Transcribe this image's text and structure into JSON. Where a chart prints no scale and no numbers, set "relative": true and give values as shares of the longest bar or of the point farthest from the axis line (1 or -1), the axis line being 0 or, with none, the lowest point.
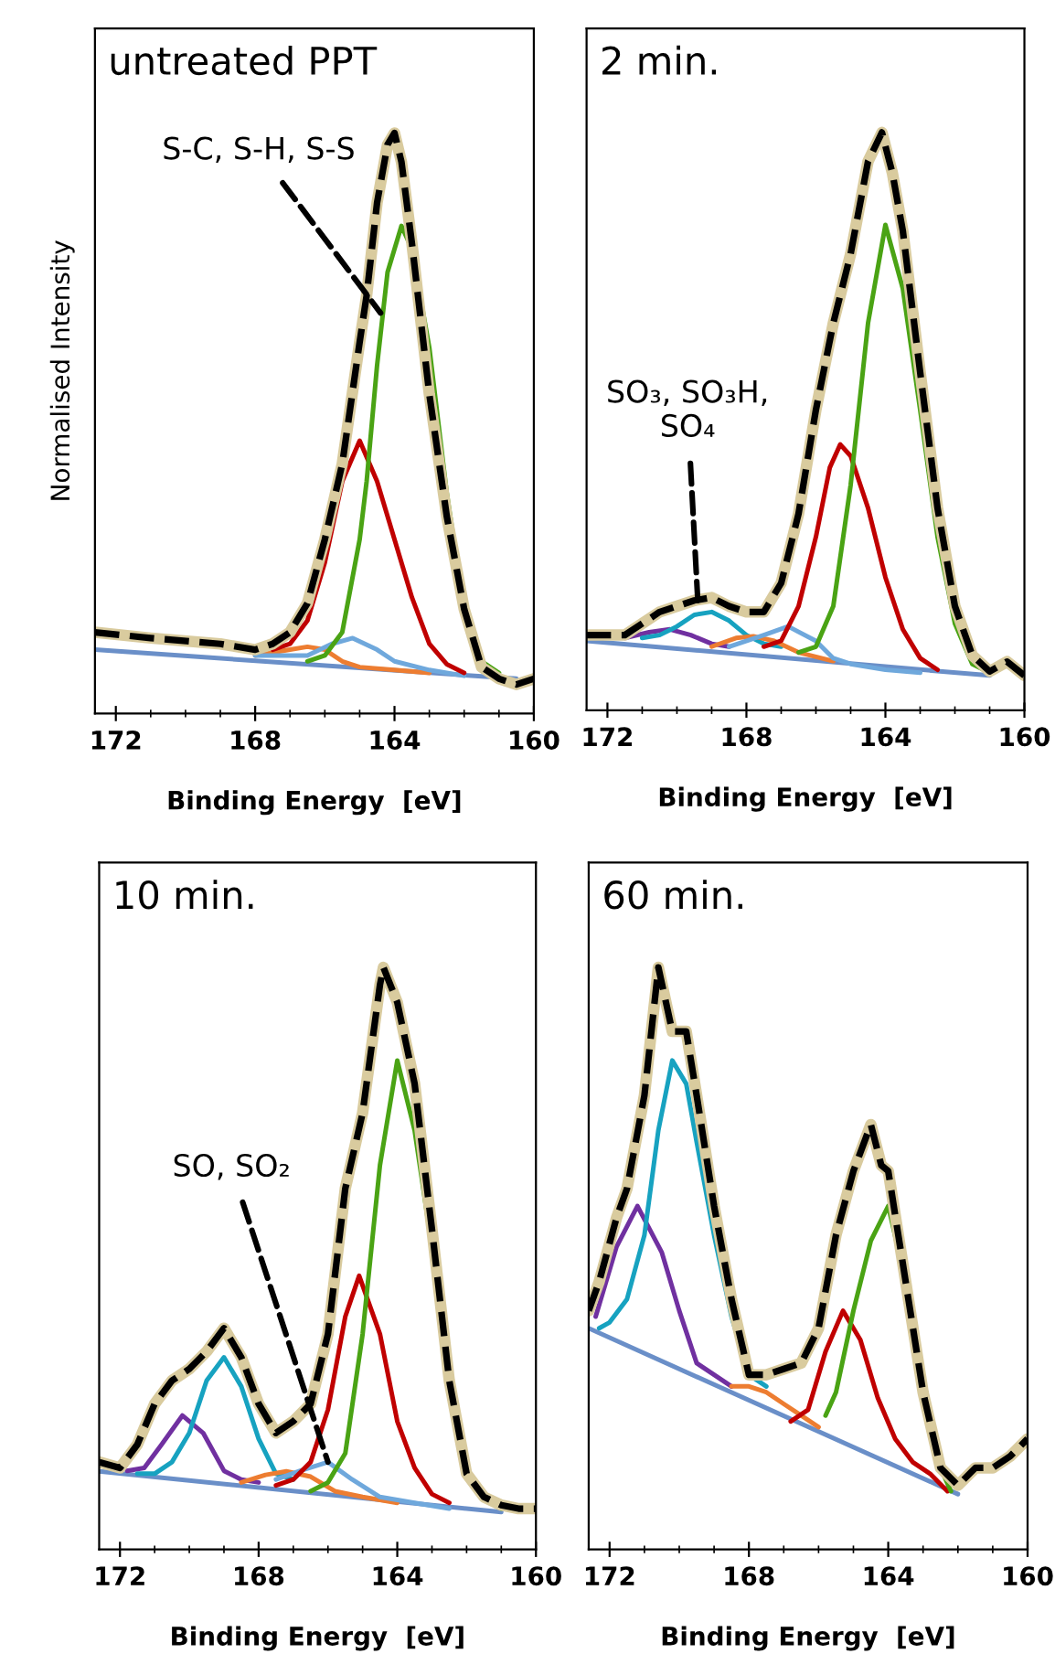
{
  "chart_data": [
    {
      "type": "line",
      "title": "untreated PPT",
      "ylabel": "Normalised Intensity",
      "xlabel": "Binding Energy  [eV]",
      "relative": true,
      "tick_labels": "x",
      "xlim": [
        172.6,
        160
      ],
      "xticks": [
        172,
        168,
        164,
        160
      ],
      "annotations": [
        {
          "text": "S-C, S-H, S-S",
          "x": 164.4,
          "y": 0.69
        }
      ],
      "series": [
        {
          "color": "#6a8fc8",
          "x": [
            172.6,
            160.5
          ],
          "values": [
            0.11,
            0.06
          ]
        },
        {
          "color": "#ed7d31",
          "x": [
            168,
            167,
            166.5,
            166,
            165.5,
            165,
            164,
            163
          ],
          "values": [
            0.1,
            0.11,
            0.115,
            0.11,
            0.09,
            0.08,
            0.075,
            0.07
          ]
        },
        {
          "color": "#6fa8dc",
          "x": [
            168,
            166.5,
            165.8,
            165.2,
            164.5,
            164,
            163,
            162
          ],
          "values": [
            0.1,
            0.1,
            0.12,
            0.13,
            0.11,
            0.09,
            0.075,
            0.065
          ]
        },
        {
          "color": "#c00000",
          "x": [
            167.5,
            167,
            166.5,
            166,
            165.5,
            165,
            164.5,
            164,
            163.5,
            163,
            162.5,
            162
          ],
          "values": [
            0.11,
            0.12,
            0.16,
            0.26,
            0.4,
            0.47,
            0.4,
            0.3,
            0.2,
            0.12,
            0.085,
            0.07
          ]
        },
        {
          "color": "#4aa314",
          "x": [
            166.5,
            166,
            165.5,
            165,
            164.8,
            164.5,
            164.2,
            163.8,
            163.5,
            163,
            162.5,
            162,
            161.5,
            161
          ],
          "values": [
            0.09,
            0.1,
            0.14,
            0.3,
            0.4,
            0.6,
            0.76,
            0.84,
            0.8,
            0.63,
            0.38,
            0.18,
            0.09,
            0.07
          ]
        },
        {
          "color": "#d9cb9e",
          "x": [
            172.6,
            171,
            169,
            168,
            167.5,
            167,
            166.5,
            166,
            165.5,
            165,
            164.8,
            164.5,
            164.2,
            164,
            163.8,
            163.5,
            163,
            162.5,
            162,
            161.5,
            161,
            160.5,
            160
          ],
          "values": [
            0.14,
            0.13,
            0.12,
            0.11,
            0.12,
            0.14,
            0.19,
            0.3,
            0.43,
            0.64,
            0.72,
            0.88,
            0.98,
            1.0,
            0.95,
            0.81,
            0.55,
            0.34,
            0.18,
            0.08,
            0.06,
            0.05,
            0.06
          ]
        },
        {
          "color": "#000000",
          "line_style": "dashed",
          "x": [
            172.6,
            171,
            169,
            168,
            167.5,
            167,
            166.5,
            166,
            165.5,
            165,
            164.8,
            164.5,
            164.2,
            164,
            163.8,
            163.5,
            163,
            162.5,
            162,
            161.5,
            161,
            160.5,
            160
          ],
          "values": [
            0.14,
            0.13,
            0.12,
            0.11,
            0.12,
            0.14,
            0.19,
            0.3,
            0.43,
            0.64,
            0.72,
            0.88,
            0.98,
            1.0,
            0.95,
            0.81,
            0.55,
            0.34,
            0.18,
            0.08,
            0.06,
            0.05,
            0.06
          ]
        }
      ]
    },
    {
      "type": "line",
      "title": "2 min.",
      "xlabel": "Binding Energy  [eV]",
      "relative": true,
      "tick_labels": "x",
      "xlim": [
        172.6,
        160
      ],
      "xticks": [
        172,
        168,
        164,
        160
      ],
      "annotations": [
        {
          "text": "SO₃, SO₃H,\nSO₄",
          "x": 169.4,
          "y": 0.19
        }
      ],
      "series": [
        {
          "color": "#6a8fc8",
          "x": [
            172.6,
            161
          ],
          "values": [
            0.12,
            0.06
          ]
        },
        {
          "color": "#7030a0",
          "x": [
            171.5,
            170.8,
            170.2,
            169.6,
            169,
            168.5
          ],
          "values": [
            0.125,
            0.135,
            0.14,
            0.13,
            0.115,
            0.11
          ]
        },
        {
          "color": "#17a2c0",
          "x": [
            171,
            170.5,
            170,
            169.5,
            169,
            168.5,
            168,
            167.5,
            167
          ],
          "values": [
            0.125,
            0.13,
            0.145,
            0.165,
            0.17,
            0.155,
            0.13,
            0.115,
            0.11
          ]
        },
        {
          "color": "#ed7d31",
          "x": [
            169,
            168.3,
            167.8,
            167.2,
            166.5,
            165.5
          ],
          "values": [
            0.11,
            0.125,
            0.128,
            0.12,
            0.1,
            0.085
          ]
        },
        {
          "color": "#6fa8dc",
          "x": [
            168.5,
            167.5,
            166.8,
            166,
            165.5,
            165,
            164,
            163
          ],
          "values": [
            0.11,
            0.13,
            0.145,
            0.12,
            0.09,
            0.08,
            0.07,
            0.065
          ]
        },
        {
          "color": "#c00000",
          "x": [
            167.5,
            167,
            166.5,
            166,
            165.6,
            165.3,
            165,
            164.5,
            164,
            163.5,
            163,
            162.5
          ],
          "values": [
            0.11,
            0.12,
            0.18,
            0.3,
            0.42,
            0.46,
            0.44,
            0.35,
            0.23,
            0.14,
            0.09,
            0.07
          ]
        },
        {
          "color": "#4aa314",
          "x": [
            166.5,
            166,
            165.5,
            165,
            164.5,
            164,
            163.5,
            163,
            162.5,
            162,
            161.5,
            161
          ],
          "values": [
            0.1,
            0.11,
            0.18,
            0.39,
            0.67,
            0.84,
            0.73,
            0.52,
            0.3,
            0.15,
            0.08,
            0.065
          ]
        },
        {
          "color": "#d9cb9e",
          "x": [
            172.6,
            171.5,
            171,
            170.5,
            170,
            169.5,
            169,
            168.5,
            168,
            167.5,
            167,
            166.5,
            166,
            165.5,
            165,
            164.5,
            164.1,
            163.8,
            163.5,
            163,
            162.5,
            162,
            161.5,
            161,
            160.5,
            160
          ],
          "values": [
            0.13,
            0.13,
            0.15,
            0.17,
            0.18,
            0.19,
            0.195,
            0.18,
            0.17,
            0.17,
            0.22,
            0.34,
            0.52,
            0.67,
            0.79,
            0.95,
            1.0,
            0.93,
            0.83,
            0.585,
            0.35,
            0.18,
            0.095,
            0.067,
            0.084,
            0.06
          ]
        },
        {
          "color": "#000000",
          "line_style": "dashed",
          "x": [
            172.6,
            171.5,
            171,
            170.5,
            170,
            169.5,
            169,
            168.5,
            168,
            167.5,
            167,
            166.5,
            166,
            165.5,
            165,
            164.5,
            164.1,
            163.8,
            163.5,
            163,
            162.5,
            162,
            161.5,
            161,
            160.5,
            160
          ],
          "values": [
            0.13,
            0.13,
            0.15,
            0.17,
            0.18,
            0.19,
            0.195,
            0.18,
            0.17,
            0.17,
            0.22,
            0.34,
            0.52,
            0.67,
            0.79,
            0.95,
            1.0,
            0.93,
            0.83,
            0.585,
            0.35,
            0.18,
            0.095,
            0.067,
            0.084,
            0.06
          ]
        }
      ]
    },
    {
      "type": "line",
      "title": "10 min.",
      "xlabel": "Binding Energy  [eV]",
      "relative": true,
      "tick_labels": "x",
      "xlim": [
        172.6,
        160
      ],
      "xticks": [
        172,
        168,
        164,
        160
      ],
      "annotations": [
        {
          "text": "SO, SO₂",
          "x": 166.0,
          "y": 0.15
        }
      ],
      "series": [
        {
          "color": "#6a8fc8",
          "x": [
            172.6,
            161
          ],
          "values": [
            0.134,
            0.064
          ]
        },
        {
          "color": "#7030a0",
          "x": [
            171.8,
            171.3,
            170.8,
            170.2,
            169.6,
            169,
            168.5,
            168
          ],
          "values": [
            0.135,
            0.14,
            0.18,
            0.23,
            0.2,
            0.135,
            0.12,
            0.115
          ]
        },
        {
          "color": "#17a2c0",
          "x": [
            171.5,
            171,
            170.5,
            170,
            169.5,
            169,
            168.5,
            168,
            167.5,
            167
          ],
          "values": [
            0.13,
            0.13,
            0.15,
            0.2,
            0.29,
            0.33,
            0.28,
            0.19,
            0.13,
            0.12
          ]
        },
        {
          "color": "#ed7d31",
          "x": [
            168.5,
            167.8,
            167.2,
            166.5,
            165.8,
            165,
            164
          ],
          "values": [
            0.115,
            0.128,
            0.134,
            0.125,
            0.1,
            0.09,
            0.08
          ]
        },
        {
          "color": "#6fa8dc",
          "x": [
            167.5,
            166.8,
            166,
            165.3,
            164.5,
            163.5,
            162.5
          ],
          "values": [
            0.12,
            0.135,
            0.15,
            0.12,
            0.09,
            0.08,
            0.07
          ]
        },
        {
          "color": "#c00000",
          "x": [
            167.5,
            167,
            166.5,
            166,
            165.5,
            165.1,
            164.5,
            164,
            163.5,
            163,
            162.5
          ],
          "values": [
            0.11,
            0.12,
            0.15,
            0.24,
            0.4,
            0.47,
            0.37,
            0.22,
            0.14,
            0.095,
            0.08
          ]
        },
        {
          "color": "#4aa314",
          "x": [
            166.5,
            166,
            165.5,
            165,
            164.5,
            164,
            163.5,
            163,
            162.5,
            162,
            161.5,
            161
          ],
          "values": [
            0.1,
            0.115,
            0.165,
            0.37,
            0.66,
            0.84,
            0.72,
            0.52,
            0.28,
            0.13,
            0.085,
            0.07
          ]
        },
        {
          "color": "#d9cb9e",
          "x": [
            172.6,
            172,
            171.5,
            171,
            170.5,
            170,
            169.5,
            169,
            168.5,
            168,
            167.5,
            167,
            166.5,
            166,
            165.5,
            165,
            164.5,
            164.4,
            164,
            163.5,
            163,
            162.5,
            162,
            161.5,
            161,
            160.5,
            160
          ],
          "values": [
            0.15,
            0.14,
            0.18,
            0.25,
            0.29,
            0.31,
            0.34,
            0.38,
            0.33,
            0.25,
            0.2,
            0.22,
            0.25,
            0.37,
            0.62,
            0.75,
            0.97,
            1.0,
            0.94,
            0.8,
            0.55,
            0.29,
            0.13,
            0.09,
            0.076,
            0.07,
            0.07
          ]
        },
        {
          "color": "#000000",
          "line_style": "dashed",
          "x": [
            172.6,
            172,
            171.5,
            171,
            170.5,
            170,
            169.5,
            169,
            168.5,
            168,
            167.5,
            167,
            166.5,
            166,
            165.5,
            165,
            164.5,
            164.4,
            164,
            163.5,
            163,
            162.5,
            162,
            161.5,
            161,
            160.5,
            160
          ],
          "values": [
            0.15,
            0.14,
            0.18,
            0.25,
            0.29,
            0.31,
            0.34,
            0.38,
            0.33,
            0.25,
            0.2,
            0.22,
            0.25,
            0.37,
            0.62,
            0.75,
            0.97,
            1.0,
            0.94,
            0.8,
            0.55,
            0.29,
            0.13,
            0.09,
            0.076,
            0.07,
            0.07
          ]
        }
      ]
    },
    {
      "type": "line",
      "title": "60 min.",
      "xlabel": "Binding Energy  [eV]",
      "relative": true,
      "tick_labels": "x",
      "xlim": [
        172.6,
        160
      ],
      "xticks": [
        172,
        168,
        164,
        160
      ],
      "series": [
        {
          "color": "#6a8fc8",
          "x": [
            172.6,
            162
          ],
          "values": [
            0.38,
            0.095
          ]
        },
        {
          "color": "#7030a0",
          "x": [
            172.4,
            171.8,
            171.2,
            170.5,
            170,
            169.5,
            169,
            168.5
          ],
          "values": [
            0.4,
            0.52,
            0.59,
            0.51,
            0.41,
            0.32,
            0.3,
            0.28
          ]
        },
        {
          "color": "#17a2c0",
          "x": [
            172.3,
            172,
            171.5,
            171,
            170.6,
            170.2,
            169.8,
            169.5,
            169,
            168.5,
            168,
            167.5
          ],
          "values": [
            0.38,
            0.39,
            0.43,
            0.54,
            0.72,
            0.84,
            0.8,
            0.7,
            0.54,
            0.4,
            0.3,
            0.28
          ]
        },
        {
          "color": "#ed7d31",
          "x": [
            168.5,
            168,
            167.5,
            167,
            166.5,
            166
          ],
          "values": [
            0.28,
            0.28,
            0.27,
            0.25,
            0.23,
            0.21
          ]
        },
        {
          "color": "#c00000",
          "x": [
            166.8,
            166.3,
            165.8,
            165.3,
            164.8,
            164.3,
            163.8,
            163.3,
            162.8,
            162.3
          ],
          "values": [
            0.22,
            0.24,
            0.34,
            0.41,
            0.36,
            0.26,
            0.19,
            0.15,
            0.13,
            0.1
          ]
        },
        {
          "color": "#4aa314",
          "x": [
            165.8,
            165.5,
            165,
            164.5,
            164,
            163.5,
            163,
            162.5,
            162.2
          ],
          "values": [
            0.23,
            0.27,
            0.41,
            0.53,
            0.59,
            0.46,
            0.27,
            0.14,
            0.1
          ]
        },
        {
          "color": "#d9cb9e",
          "x": [
            172.6,
            172.3,
            171.8,
            171.5,
            171,
            170.6,
            170.2,
            169.8,
            169.5,
            169,
            168.5,
            168,
            167.5,
            167,
            166.5,
            166,
            165.5,
            165,
            164.5,
            164.2,
            164,
            163.5,
            163,
            162.5,
            162,
            161.5,
            161,
            160.5,
            160
          ],
          "values": [
            0.41,
            0.46,
            0.57,
            0.62,
            0.78,
            1.0,
            0.89,
            0.89,
            0.78,
            0.59,
            0.43,
            0.3,
            0.3,
            0.31,
            0.32,
            0.38,
            0.54,
            0.65,
            0.73,
            0.66,
            0.65,
            0.46,
            0.27,
            0.14,
            0.11,
            0.14,
            0.14,
            0.16,
            0.19
          ]
        },
        {
          "color": "#000000",
          "line_style": "dashed",
          "x": [
            172.6,
            172.3,
            171.8,
            171.5,
            171,
            170.6,
            170.2,
            169.8,
            169.5,
            169,
            168.5,
            168,
            167.5,
            167,
            166.5,
            166,
            165.5,
            165,
            164.5,
            164.2,
            164,
            163.5,
            163,
            162.5,
            162,
            161.5,
            161,
            160.5,
            160
          ],
          "values": [
            0.41,
            0.46,
            0.57,
            0.62,
            0.78,
            1.0,
            0.89,
            0.89,
            0.78,
            0.59,
            0.43,
            0.3,
            0.3,
            0.31,
            0.32,
            0.38,
            0.54,
            0.65,
            0.73,
            0.66,
            0.65,
            0.46,
            0.27,
            0.14,
            0.11,
            0.14,
            0.14,
            0.16,
            0.19
          ]
        }
      ]
    }
  ]
}
